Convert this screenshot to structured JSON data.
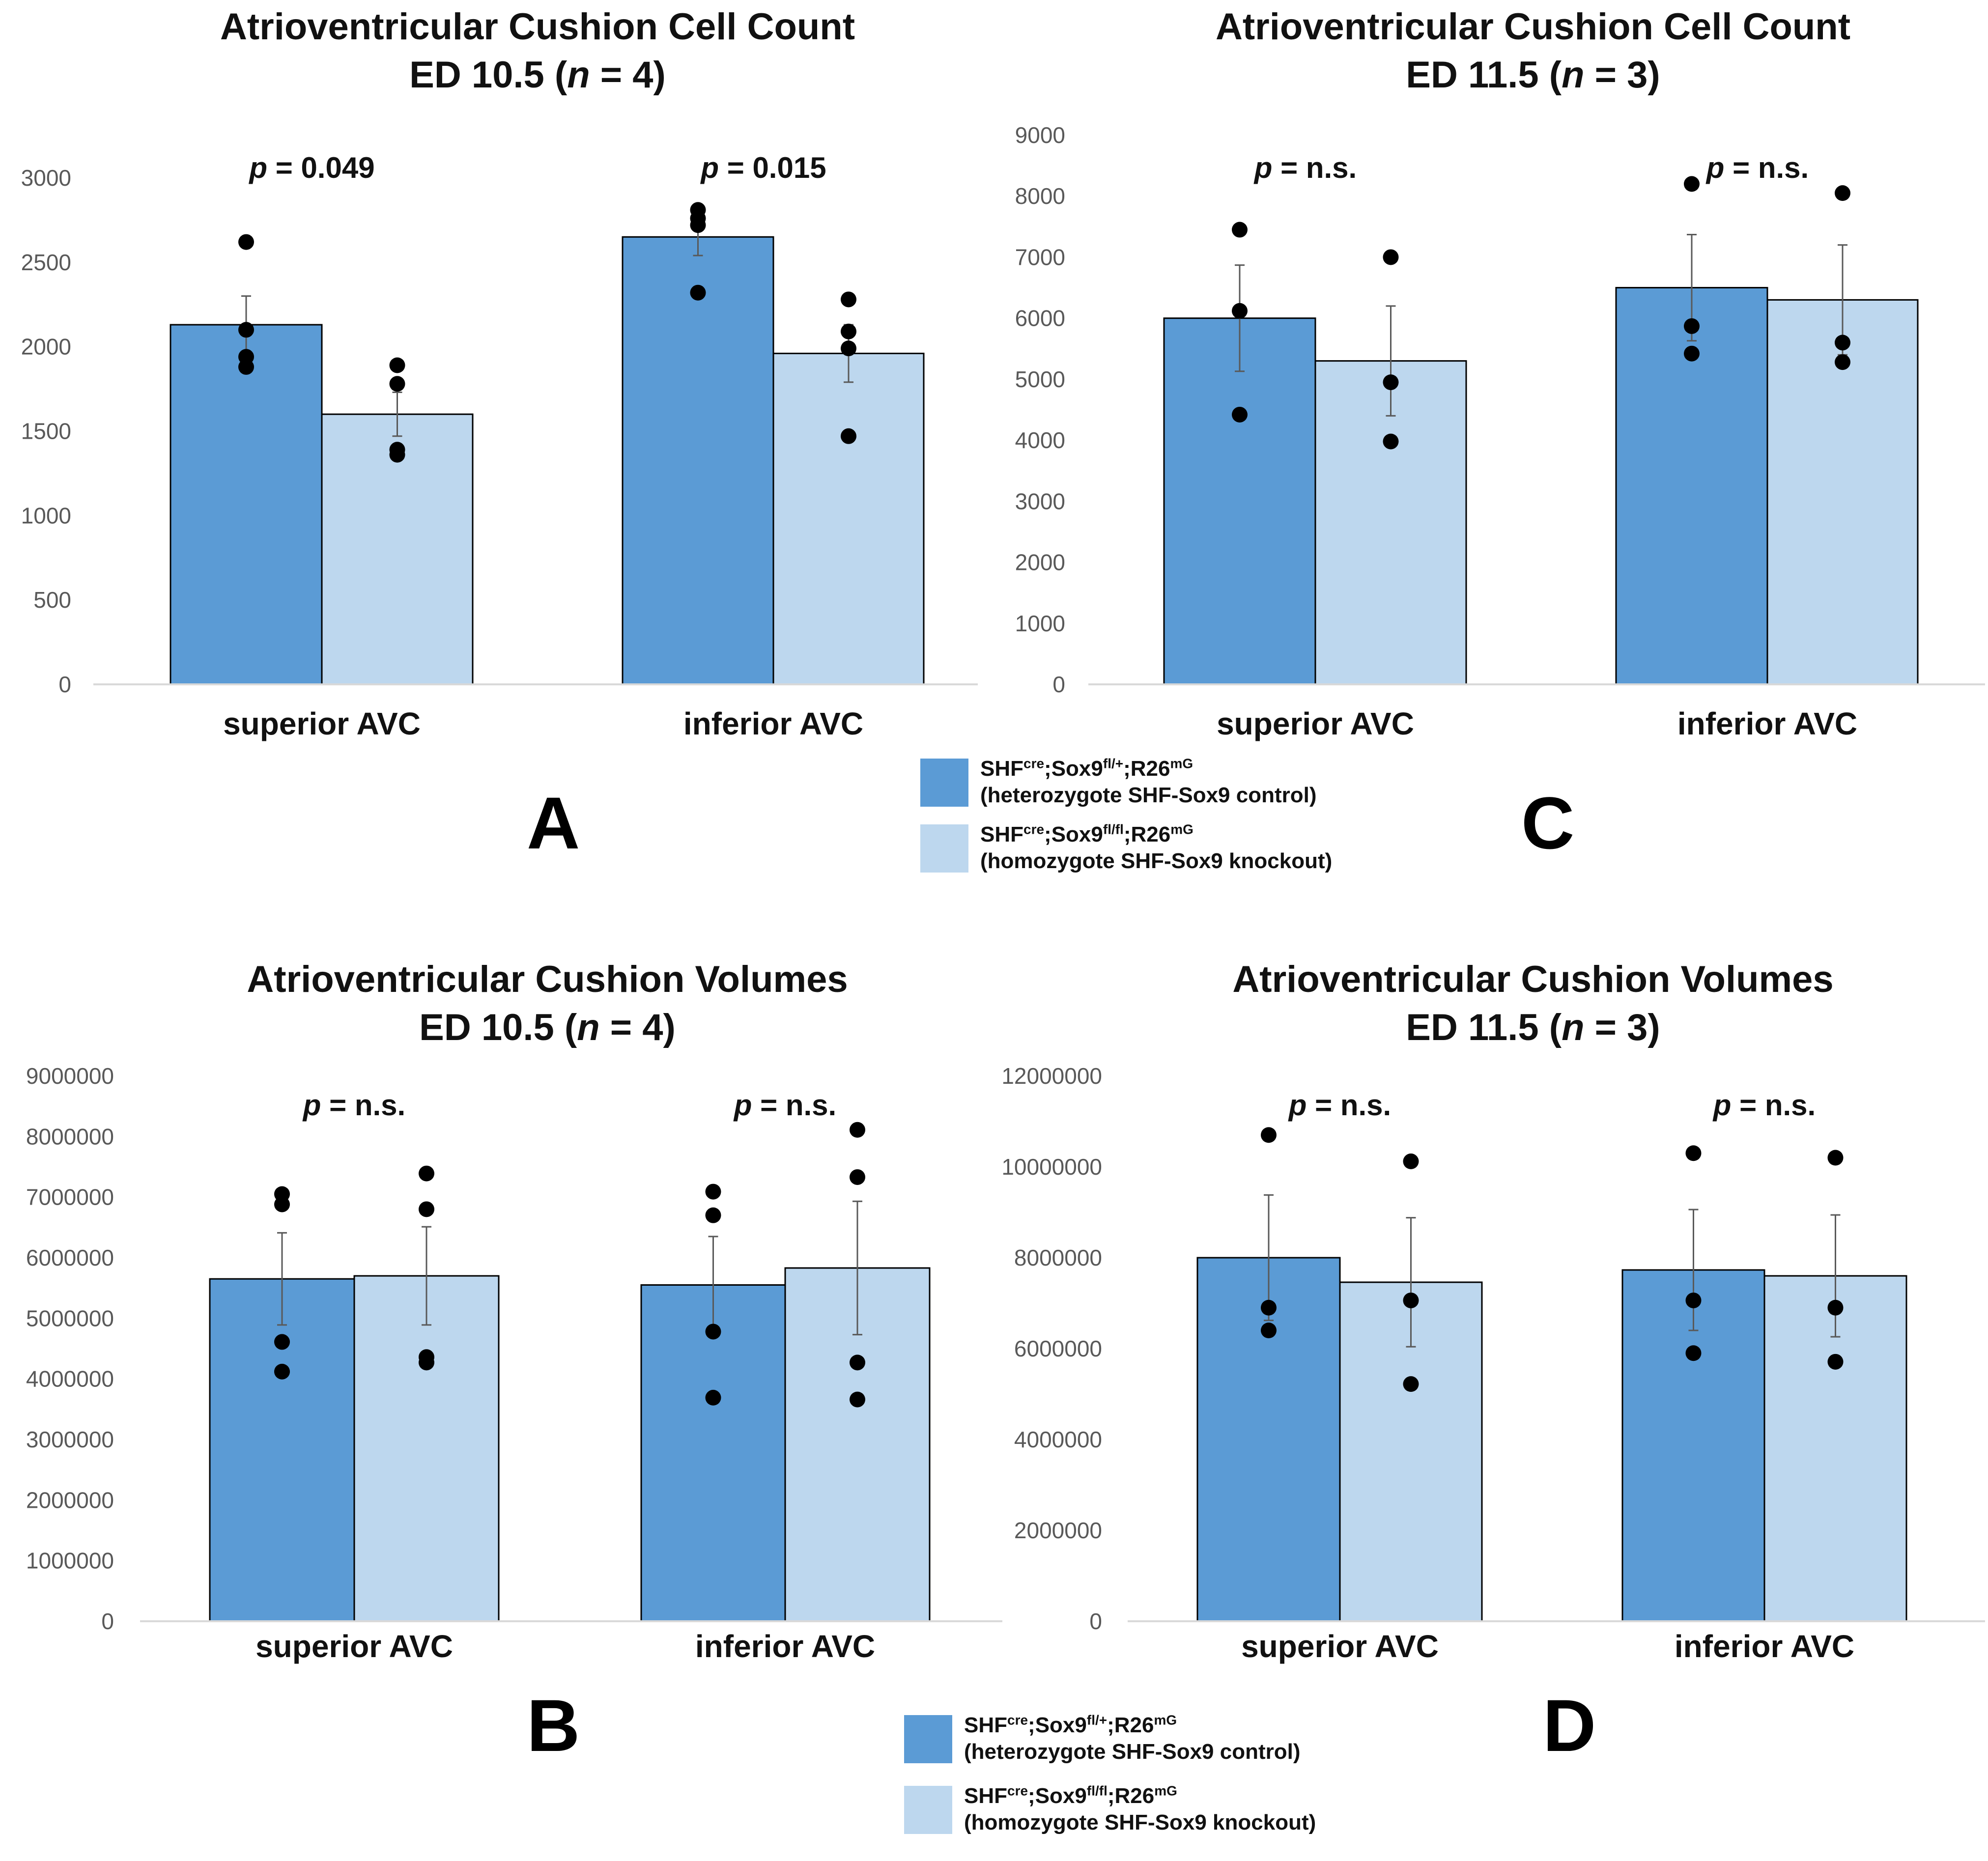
{
  "colors": {
    "control": "#5b9bd5",
    "knockout": "#bdd7ee",
    "axis": "#d9d9d9",
    "dot": "#000000",
    "text": "#111111",
    "tick_text": "#595959"
  },
  "legend": {
    "control_main": "SHF",
    "control_sup1": "cre",
    "control_mid": ";Sox9",
    "control_sup2": "fl/+",
    "control_mid2": ";R26",
    "control_sup3": "mG",
    "control_desc": "(heterozygote SHF-Sox9 control)",
    "knockout_main": "SHF",
    "knockout_sup1": "cre",
    "knockout_mid": ";Sox9",
    "knockout_sup2": "fl/fl",
    "knockout_mid2": ";R26",
    "knockout_sup3": "mG",
    "knockout_desc": "(homozygote SHF-Sox9 knockout)"
  },
  "panels": {
    "A": {
      "letter": "A",
      "title_line1": "Atrioventricular Cushion Cell Count",
      "title_line2_pre": "ED 10.5  (",
      "title_n": "n",
      "title_line2_post": " = 4)"
    },
    "B": {
      "letter": "B",
      "title_line1": "Atrioventricular Cushion Volumes",
      "title_line2_pre": "ED 10.5 (",
      "title_n": "n",
      "title_line2_post": " = 4)"
    },
    "C": {
      "letter": "C",
      "title_line1": "Atrioventricular Cushion Cell Count",
      "title_line2_pre": "ED 11.5  (",
      "title_n": "n",
      "title_line2_post": " = 3)"
    },
    "D": {
      "letter": "D",
      "title_line1": "Atrioventricular Cushion Volumes",
      "title_line2_pre": "ED 11.5    (",
      "title_n": "n",
      "title_line2_post": " = 3)"
    }
  },
  "chart_data": [
    {
      "id": "A",
      "type": "bar",
      "title": "Atrioventricular Cushion Cell Count ED 10.5 (n = 4)",
      "categories": [
        "superior AVC",
        "inferior AVC"
      ],
      "ylim": [
        0,
        3000
      ],
      "yticks": [
        "0",
        "500",
        "1000",
        "1500",
        "2000",
        "2500",
        "3000"
      ],
      "ytick_values": [
        0,
        500,
        1000,
        1500,
        2000,
        2500,
        3000
      ],
      "pvalues": [
        "p = 0.049",
        "p = 0.015"
      ],
      "series": [
        {
          "name": "control",
          "values": [
            2130,
            2650
          ],
          "err": [
            170,
            110
          ],
          "points": [
            [
              2620,
              2100,
              1940,
              1880
            ],
            [
              2810,
              2760,
              2720,
              2320
            ]
          ]
        },
        {
          "name": "knockout",
          "values": [
            1600,
            1960
          ],
          "err": [
            130,
            170
          ],
          "points": [
            [
              1890,
              1780,
              1390,
              1360
            ],
            [
              2280,
              2090,
              1990,
              1470
            ]
          ]
        }
      ]
    },
    {
      "id": "C",
      "type": "bar",
      "title": "Atrioventricular Cushion Cell Count ED 11.5 (n = 3)",
      "categories": [
        "superior AVC",
        "inferior AVC"
      ],
      "ylim": [
        0,
        9000
      ],
      "yticks": [
        "0",
        "1000",
        "2000",
        "3000",
        "4000",
        "5000",
        "6000",
        "7000",
        "8000",
        "9000"
      ],
      "ytick_values": [
        0,
        1000,
        2000,
        3000,
        4000,
        5000,
        6000,
        7000,
        8000,
        9000
      ],
      "pvalues": [
        "p = n.s.",
        "p = n.s."
      ],
      "series": [
        {
          "name": "control",
          "values": [
            6000,
            6500
          ],
          "err": [
            870,
            870
          ],
          "points": [
            [
              7450,
              6120,
              4420
            ],
            [
              8200,
              5870,
              5420
            ]
          ]
        },
        {
          "name": "knockout",
          "values": [
            5300,
            6300
          ],
          "err": [
            900,
            900
          ],
          "points": [
            [
              7000,
              4950,
              3980
            ],
            [
              8050,
              5600,
              5280
            ]
          ]
        }
      ]
    },
    {
      "id": "B",
      "type": "bar",
      "title": "Atrioventricular Cushion Volumes ED 10.5 (n = 4)",
      "categories": [
        "superior AVC",
        "inferior AVC"
      ],
      "ylim": [
        0,
        9000000
      ],
      "yticks": [
        "0",
        "1000000",
        "2000000",
        "3000000",
        "4000000",
        "5000000",
        "6000000",
        "7000000",
        "8000000",
        "9000000"
      ],
      "ytick_values": [
        0,
        1000000,
        2000000,
        3000000,
        4000000,
        5000000,
        6000000,
        7000000,
        8000000,
        9000000
      ],
      "pvalues": [
        "p = n.s.",
        "p = n.s."
      ],
      "series": [
        {
          "name": "control",
          "values": [
            5650000,
            5550000
          ],
          "err": [
            760000,
            800000
          ],
          "points": [
            [
              7050000,
              6880000,
              4610000,
              4120000
            ],
            [
              7090000,
              6700000,
              4780000,
              3690000
            ]
          ]
        },
        {
          "name": "knockout",
          "values": [
            5700000,
            5830000
          ],
          "err": [
            810000,
            1100000
          ],
          "points": [
            [
              7390000,
              6800000,
              4360000,
              4270000
            ],
            [
              8110000,
              7330000,
              4270000,
              3660000
            ]
          ]
        }
      ]
    },
    {
      "id": "D",
      "type": "bar",
      "title": "Atrioventricular Cushion Volumes ED 11.5 (n = 3)",
      "categories": [
        "superior AVC",
        "inferior AVC"
      ],
      "ylim": [
        0,
        12000000
      ],
      "yticks": [
        "0",
        "2000000",
        "4000000",
        "6000000",
        "8000000",
        "10000000",
        "12000000"
      ],
      "ytick_values": [
        0,
        2000000,
        4000000,
        6000000,
        8000000,
        10000000,
        12000000
      ],
      "pvalues": [
        "p = n.s.",
        "p = n.s."
      ],
      "series": [
        {
          "name": "control",
          "values": [
            8000000,
            7730000
          ],
          "err": [
            1380000,
            1330000
          ],
          "points": [
            [
              10700000,
              6900000,
              6400000
            ],
            [
              10300000,
              7060000,
              5900000
            ]
          ]
        },
        {
          "name": "knockout",
          "values": [
            7460000,
            7600000
          ],
          "err": [
            1420000,
            1340000
          ],
          "points": [
            [
              10120000,
              7060000,
              5220000
            ],
            [
              10200000,
              6900000,
              5710000
            ]
          ]
        }
      ]
    }
  ]
}
